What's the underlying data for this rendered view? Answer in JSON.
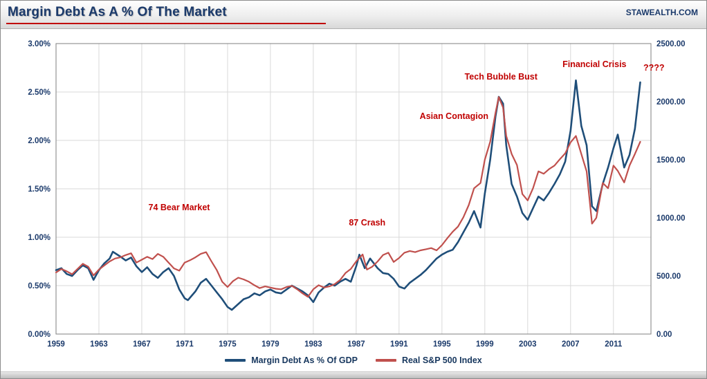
{
  "header": {
    "title": "Margin Debt As A % Of The Market",
    "site": "STAWEALTH.COM"
  },
  "legend": [
    {
      "label": "Margin Debt As % Of GDP",
      "color": "#1f4e79"
    },
    {
      "label": "Real S&P 500 Index",
      "color": "#c0504d"
    }
  ],
  "chart_data": {
    "type": "line",
    "title": "Margin Debt As A % Of The Market",
    "x_axis": {
      "min": 1959,
      "max": 2014.5,
      "tick_years": [
        1959,
        1963,
        1967,
        1971,
        1975,
        1979,
        1983,
        1987,
        1991,
        1995,
        1999,
        2003,
        2007,
        2011
      ]
    },
    "y_left": {
      "min": 0,
      "max": 3,
      "ticks": [
        {
          "label": "3.00%",
          "v": 3.0
        },
        {
          "label": "2.50%",
          "v": 2.5
        },
        {
          "label": "2.00%",
          "v": 2.0
        },
        {
          "label": "1.50%",
          "v": 1.5
        },
        {
          "label": "1.00%",
          "v": 1.0
        },
        {
          "label": "0.50%",
          "v": 0.5
        },
        {
          "label": "0.00%",
          "v": 0.0
        }
      ]
    },
    "y_right": {
      "min": 0,
      "max": 2500,
      "ticks": [
        {
          "label": "2500.00",
          "v": 2500
        },
        {
          "label": "2000.00",
          "v": 2000
        },
        {
          "label": "1500.00",
          "v": 1500
        },
        {
          "label": "1000.00",
          "v": 1000
        },
        {
          "label": "500.00",
          "v": 500
        },
        {
          "label": "0.00",
          "v": 0
        }
      ]
    },
    "series": [
      {
        "name": "Margin Debt As % Of GDP",
        "axis": "left",
        "color": "#1f4e79",
        "width": 2.6,
        "points": [
          [
            1959,
            0.66
          ],
          [
            1959.5,
            0.68
          ],
          [
            1960,
            0.62
          ],
          [
            1960.5,
            0.6
          ],
          [
            1961,
            0.66
          ],
          [
            1961.5,
            0.71
          ],
          [
            1962,
            0.68
          ],
          [
            1962.5,
            0.56
          ],
          [
            1963,
            0.66
          ],
          [
            1963.5,
            0.73
          ],
          [
            1964,
            0.78
          ],
          [
            1964.3,
            0.85
          ],
          [
            1965,
            0.8
          ],
          [
            1965.5,
            0.76
          ],
          [
            1966,
            0.79
          ],
          [
            1966.5,
            0.7
          ],
          [
            1967,
            0.64
          ],
          [
            1967.5,
            0.69
          ],
          [
            1968,
            0.62
          ],
          [
            1968.5,
            0.58
          ],
          [
            1969,
            0.64
          ],
          [
            1969.5,
            0.68
          ],
          [
            1970,
            0.6
          ],
          [
            1970.5,
            0.46
          ],
          [
            1971,
            0.37
          ],
          [
            1971.3,
            0.35
          ],
          [
            1972,
            0.44
          ],
          [
            1972.5,
            0.53
          ],
          [
            1973,
            0.57
          ],
          [
            1973.5,
            0.5
          ],
          [
            1974,
            0.43
          ],
          [
            1974.5,
            0.36
          ],
          [
            1975,
            0.28
          ],
          [
            1975.4,
            0.25
          ],
          [
            1976,
            0.31
          ],
          [
            1976.5,
            0.36
          ],
          [
            1977,
            0.38
          ],
          [
            1977.5,
            0.42
          ],
          [
            1978,
            0.4
          ],
          [
            1978.5,
            0.44
          ],
          [
            1979,
            0.46
          ],
          [
            1979.5,
            0.43
          ],
          [
            1980,
            0.42
          ],
          [
            1980.5,
            0.46
          ],
          [
            1981,
            0.5
          ],
          [
            1981.5,
            0.47
          ],
          [
            1982,
            0.44
          ],
          [
            1982.5,
            0.4
          ],
          [
            1983,
            0.33
          ],
          [
            1983.5,
            0.43
          ],
          [
            1984,
            0.48
          ],
          [
            1984.5,
            0.52
          ],
          [
            1985,
            0.5
          ],
          [
            1985.5,
            0.54
          ],
          [
            1986,
            0.57
          ],
          [
            1986.5,
            0.54
          ],
          [
            1987,
            0.7
          ],
          [
            1987.3,
            0.82
          ],
          [
            1987.8,
            0.68
          ],
          [
            1988.3,
            0.78
          ],
          [
            1989,
            0.68
          ],
          [
            1989.5,
            0.63
          ],
          [
            1990,
            0.62
          ],
          [
            1990.5,
            0.57
          ],
          [
            1991,
            0.49
          ],
          [
            1991.5,
            0.47
          ],
          [
            1992,
            0.53
          ],
          [
            1992.5,
            0.57
          ],
          [
            1993,
            0.61
          ],
          [
            1993.5,
            0.66
          ],
          [
            1994,
            0.72
          ],
          [
            1994.5,
            0.78
          ],
          [
            1995,
            0.82
          ],
          [
            1995.5,
            0.85
          ],
          [
            1996,
            0.87
          ],
          [
            1996.5,
            0.95
          ],
          [
            1997,
            1.05
          ],
          [
            1997.5,
            1.15
          ],
          [
            1998,
            1.27
          ],
          [
            1998.6,
            1.1
          ],
          [
            1999,
            1.45
          ],
          [
            1999.5,
            1.8
          ],
          [
            2000,
            2.25
          ],
          [
            2000.3,
            2.45
          ],
          [
            2000.7,
            2.38
          ],
          [
            2001,
            1.95
          ],
          [
            2001.5,
            1.55
          ],
          [
            2002,
            1.42
          ],
          [
            2002.5,
            1.25
          ],
          [
            2003,
            1.18
          ],
          [
            2003.5,
            1.3
          ],
          [
            2004,
            1.42
          ],
          [
            2004.5,
            1.38
          ],
          [
            2005,
            1.46
          ],
          [
            2005.5,
            1.55
          ],
          [
            2006,
            1.65
          ],
          [
            2006.5,
            1.78
          ],
          [
            2007,
            2.1
          ],
          [
            2007.5,
            2.62
          ],
          [
            2008,
            2.15
          ],
          [
            2008.5,
            1.95
          ],
          [
            2009,
            1.32
          ],
          [
            2009.4,
            1.27
          ],
          [
            2010,
            1.55
          ],
          [
            2010.5,
            1.72
          ],
          [
            2011,
            1.92
          ],
          [
            2011.4,
            2.06
          ],
          [
            2012,
            1.72
          ],
          [
            2012.5,
            1.85
          ],
          [
            2013,
            2.12
          ],
          [
            2013.5,
            2.6
          ]
        ]
      },
      {
        "name": "Real S&P 500 Index",
        "axis": "right",
        "color": "#c0504d",
        "width": 2.2,
        "points": [
          [
            1959,
            530
          ],
          [
            1959.5,
            560
          ],
          [
            1960,
            540
          ],
          [
            1960.5,
            515
          ],
          [
            1961,
            560
          ],
          [
            1961.5,
            605
          ],
          [
            1962,
            580
          ],
          [
            1962.5,
            505
          ],
          [
            1963,
            555
          ],
          [
            1963.5,
            590
          ],
          [
            1964,
            625
          ],
          [
            1964.5,
            650
          ],
          [
            1965,
            660
          ],
          [
            1965.5,
            680
          ],
          [
            1966,
            695
          ],
          [
            1966.5,
            615
          ],
          [
            1967,
            640
          ],
          [
            1967.5,
            665
          ],
          [
            1968,
            645
          ],
          [
            1968.5,
            690
          ],
          [
            1969,
            665
          ],
          [
            1969.5,
            615
          ],
          [
            1970,
            565
          ],
          [
            1970.5,
            545
          ],
          [
            1971,
            615
          ],
          [
            1971.5,
            635
          ],
          [
            1972,
            660
          ],
          [
            1972.5,
            690
          ],
          [
            1973,
            705
          ],
          [
            1973.5,
            625
          ],
          [
            1974,
            550
          ],
          [
            1974.5,
            450
          ],
          [
            1975,
            405
          ],
          [
            1975.5,
            455
          ],
          [
            1976,
            485
          ],
          [
            1976.5,
            470
          ],
          [
            1977,
            450
          ],
          [
            1977.5,
            420
          ],
          [
            1978,
            395
          ],
          [
            1978.5,
            410
          ],
          [
            1979,
            400
          ],
          [
            1979.5,
            390
          ],
          [
            1980,
            385
          ],
          [
            1980.5,
            405
          ],
          [
            1981,
            415
          ],
          [
            1981.5,
            385
          ],
          [
            1982,
            350
          ],
          [
            1982.5,
            320
          ],
          [
            1983,
            385
          ],
          [
            1983.5,
            420
          ],
          [
            1984,
            400
          ],
          [
            1984.5,
            410
          ],
          [
            1985,
            430
          ],
          [
            1985.5,
            465
          ],
          [
            1986,
            525
          ],
          [
            1986.5,
            560
          ],
          [
            1987,
            625
          ],
          [
            1987.6,
            685
          ],
          [
            1988,
            555
          ],
          [
            1988.5,
            580
          ],
          [
            1989,
            625
          ],
          [
            1989.5,
            680
          ],
          [
            1990,
            700
          ],
          [
            1990.5,
            620
          ],
          [
            1991,
            655
          ],
          [
            1991.5,
            700
          ],
          [
            1992,
            715
          ],
          [
            1992.5,
            705
          ],
          [
            1993,
            720
          ],
          [
            1993.5,
            730
          ],
          [
            1994,
            740
          ],
          [
            1994.5,
            720
          ],
          [
            1995,
            765
          ],
          [
            1995.5,
            825
          ],
          [
            1996,
            880
          ],
          [
            1996.5,
            925
          ],
          [
            1997,
            1005
          ],
          [
            1997.5,
            1110
          ],
          [
            1998,
            1255
          ],
          [
            1998.6,
            1300
          ],
          [
            1999,
            1500
          ],
          [
            1999.5,
            1655
          ],
          [
            2000,
            1905
          ],
          [
            2000.3,
            2040
          ],
          [
            2000.7,
            1950
          ],
          [
            2001,
            1705
          ],
          [
            2001.5,
            1550
          ],
          [
            2002,
            1455
          ],
          [
            2002.5,
            1205
          ],
          [
            2003,
            1150
          ],
          [
            2003.5,
            1255
          ],
          [
            2004,
            1400
          ],
          [
            2004.5,
            1380
          ],
          [
            2005,
            1420
          ],
          [
            2005.5,
            1450
          ],
          [
            2006,
            1505
          ],
          [
            2006.5,
            1555
          ],
          [
            2007,
            1650
          ],
          [
            2007.5,
            1705
          ],
          [
            2008,
            1550
          ],
          [
            2008.5,
            1400
          ],
          [
            2009,
            950
          ],
          [
            2009.4,
            1000
          ],
          [
            2010,
            1300
          ],
          [
            2010.5,
            1255
          ],
          [
            2011,
            1450
          ],
          [
            2011.4,
            1405
          ],
          [
            2012,
            1305
          ],
          [
            2012.5,
            1450
          ],
          [
            2013,
            1550
          ],
          [
            2013.5,
            1655
          ]
        ]
      }
    ],
    "annotations": [
      {
        "text": "74 Bear Market",
        "fx": 0.207,
        "fy": 0.574
      },
      {
        "text": "87 Crash",
        "fx": 0.523,
        "fy": 0.626
      },
      {
        "text": "Asian Contagion",
        "fx": 0.669,
        "fy": 0.26
      },
      {
        "text": "Tech Bubble Bust",
        "fx": 0.748,
        "fy": 0.124
      },
      {
        "text": "Financial Crisis",
        "fx": 0.905,
        "fy": 0.081
      },
      {
        "text": "????",
        "fx": 1.005,
        "fy": 0.093
      }
    ],
    "grid": true,
    "legend_position": "bottom",
    "colors": {
      "annotation": "#c00000",
      "axis_text": "#1b3a6b",
      "gridline": "#d9d9d9",
      "plot_border": "#7f7f7f"
    }
  }
}
